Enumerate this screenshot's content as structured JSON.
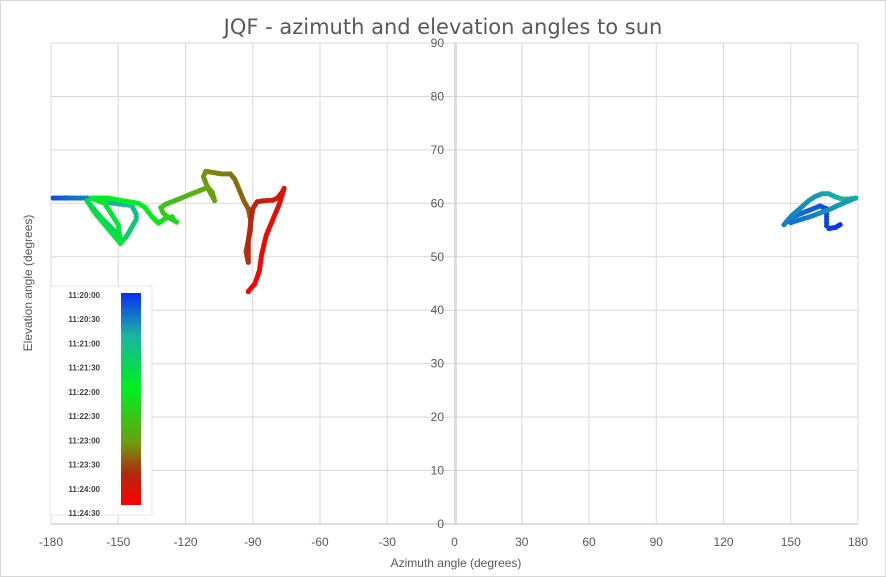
{
  "chart_data": {
    "type": "scatter",
    "title": "JQF - azimuth and elevation angles to sun",
    "xlabel": "Azimuth angle (degrees)",
    "ylabel": "Elevation angle (degrees)",
    "xlim": [
      -180,
      180
    ],
    "ylim": [
      0,
      90
    ],
    "x_ticks": [
      -180,
      -150,
      -120,
      -90,
      -60,
      -30,
      0,
      30,
      60,
      90,
      120,
      150,
      180
    ],
    "y_ticks": [
      0,
      10,
      20,
      30,
      40,
      50,
      60,
      70,
      80,
      90
    ],
    "grid": true,
    "colorbar": {
      "labels": [
        "11:20:00",
        "11:20:30",
        "11:21:00",
        "11:21:30",
        "11:22:00",
        "11:22:30",
        "11:23:00",
        "11:23:30",
        "11:24:00",
        "11:24:30"
      ],
      "colors": [
        "#0a2df5",
        "#1ab4a0",
        "#00f020",
        "#6aa010",
        "#b02a10",
        "#ff0000"
      ]
    },
    "paths": [
      {
        "points": [
          [
            -179,
            61
          ],
          [
            -175,
            61
          ],
          [
            -172,
            61
          ],
          [
            -168,
            61
          ],
          [
            -164,
            61
          ],
          [
            -160,
            60.8
          ],
          [
            -156,
            60.3
          ],
          [
            -152,
            60
          ],
          [
            -148,
            59.8
          ],
          [
            -144,
            59.6
          ],
          [
            -142,
            58
          ],
          [
            -142,
            57
          ],
          [
            -144,
            55.5
          ],
          [
            -146,
            54
          ],
          [
            -148,
            53
          ]
        ],
        "t": [
          0.05,
          0.07,
          0.09,
          0.11,
          0.13,
          0.15,
          0.17,
          0.19,
          0.21,
          0.23,
          0.25,
          0.27,
          0.29,
          0.31,
          0.33
        ]
      },
      {
        "points": [
          [
            -148,
            53
          ],
          [
            -152,
            55
          ],
          [
            -158,
            57.5
          ],
          [
            -164,
            60.5
          ],
          [
            -160,
            58
          ],
          [
            -156,
            56
          ],
          [
            -152,
            54
          ],
          [
            -149,
            52.5
          ],
          [
            -150,
            56
          ],
          [
            -156,
            60
          ],
          [
            -162,
            61
          ],
          [
            -155,
            61
          ],
          [
            -148,
            60.5
          ],
          [
            -141,
            60
          ],
          [
            -138,
            59.2
          ],
          [
            -135,
            57.5
          ],
          [
            -132,
            56.3
          ],
          [
            -129,
            57.2
          ],
          [
            -126,
            57.5
          ],
          [
            -125,
            56.8
          ],
          [
            -124,
            56.5
          ]
        ],
        "t": [
          0.33,
          0.34,
          0.35,
          0.36,
          0.37,
          0.38,
          0.39,
          0.4,
          0.41,
          0.42,
          0.43,
          0.44,
          0.45,
          0.46,
          0.47,
          0.48,
          0.49,
          0.5,
          0.51,
          0.52,
          0.53
        ]
      },
      {
        "points": [
          [
            -124,
            56.5
          ],
          [
            -128,
            57.5
          ],
          [
            -130,
            58.2
          ],
          [
            -131,
            59.2
          ],
          [
            -129,
            59.8
          ],
          [
            -126,
            60.3
          ],
          [
            -123,
            60.8
          ],
          [
            -119,
            61.5
          ],
          [
            -116,
            62
          ],
          [
            -113,
            62.5
          ],
          [
            -110,
            63
          ],
          [
            -108,
            62
          ],
          [
            -107,
            60.5
          ],
          [
            -110,
            62.8
          ],
          [
            -112,
            65
          ],
          [
            -111,
            66
          ],
          [
            -108,
            65.8
          ],
          [
            -104,
            65.5
          ],
          [
            -100,
            65.5
          ],
          [
            -98,
            64.5
          ],
          [
            -96,
            62.5
          ],
          [
            -94,
            60.5
          ],
          [
            -92,
            59
          ],
          [
            -91,
            57
          ],
          [
            -91,
            55
          ],
          [
            -92,
            53
          ],
          [
            -93,
            51
          ],
          [
            -92,
            49
          ]
        ],
        "t": [
          0.53,
          0.545,
          0.56,
          0.575,
          0.59,
          0.605,
          0.62,
          0.635,
          0.65,
          0.66,
          0.67,
          0.68,
          0.69,
          0.7,
          0.71,
          0.72,
          0.73,
          0.74,
          0.75,
          0.76,
          0.77,
          0.78,
          0.79,
          0.8,
          0.81,
          0.82,
          0.83,
          0.84
        ]
      },
      {
        "points": [
          [
            -92,
            49
          ],
          [
            -92,
            53
          ],
          [
            -91,
            56
          ],
          [
            -90,
            59
          ],
          [
            -88,
            60.3
          ],
          [
            -85,
            60.5
          ],
          [
            -81,
            60.6
          ],
          [
            -79,
            61
          ],
          [
            -77,
            62
          ],
          [
            -76,
            62.8
          ],
          [
            -78,
            60
          ],
          [
            -81,
            57
          ],
          [
            -84,
            54
          ],
          [
            -86,
            50.5
          ],
          [
            -87,
            47.5
          ],
          [
            -89,
            45
          ],
          [
            -92,
            43.5
          ]
        ],
        "t": [
          0.84,
          0.85,
          0.86,
          0.87,
          0.88,
          0.89,
          0.9,
          0.91,
          0.92,
          0.93,
          0.94,
          0.95,
          0.96,
          0.97,
          0.98,
          0.99,
          1.0
        ]
      },
      {
        "points": [
          [
            172,
            56
          ],
          [
            170,
            55.5
          ],
          [
            167,
            55.3
          ],
          [
            166,
            55.8
          ],
          [
            166,
            57.5
          ],
          [
            166,
            59
          ],
          [
            163,
            59.5
          ],
          [
            160,
            59
          ],
          [
            157,
            58.5
          ],
          [
            154,
            58
          ],
          [
            151,
            57.5
          ],
          [
            148,
            56.5
          ],
          [
            147,
            56
          ],
          [
            150,
            57.5
          ],
          [
            154,
            59
          ],
          [
            158,
            60.5
          ],
          [
            161,
            61.3
          ],
          [
            164,
            61.8
          ],
          [
            167,
            61.8
          ],
          [
            170,
            61.2
          ],
          [
            173,
            60.8
          ],
          [
            176,
            60.8
          ],
          [
            179,
            61
          ],
          [
            175,
            60.3
          ],
          [
            171,
            59.6
          ],
          [
            167,
            58.8
          ],
          [
            163,
            58.2
          ],
          [
            160,
            57.7
          ],
          [
            157,
            57.3
          ],
          [
            153,
            56.8
          ],
          [
            150,
            56.4
          ]
        ],
        "t": [
          0.0,
          0.01,
          0.02,
          0.03,
          0.04,
          0.05,
          0.06,
          0.07,
          0.08,
          0.09,
          0.1,
          0.11,
          0.12,
          0.13,
          0.14,
          0.15,
          0.16,
          0.17,
          0.18,
          0.19,
          0.2,
          0.19,
          0.18,
          0.17,
          0.16,
          0.15,
          0.14,
          0.13,
          0.12,
          0.11,
          0.1
        ]
      }
    ]
  }
}
